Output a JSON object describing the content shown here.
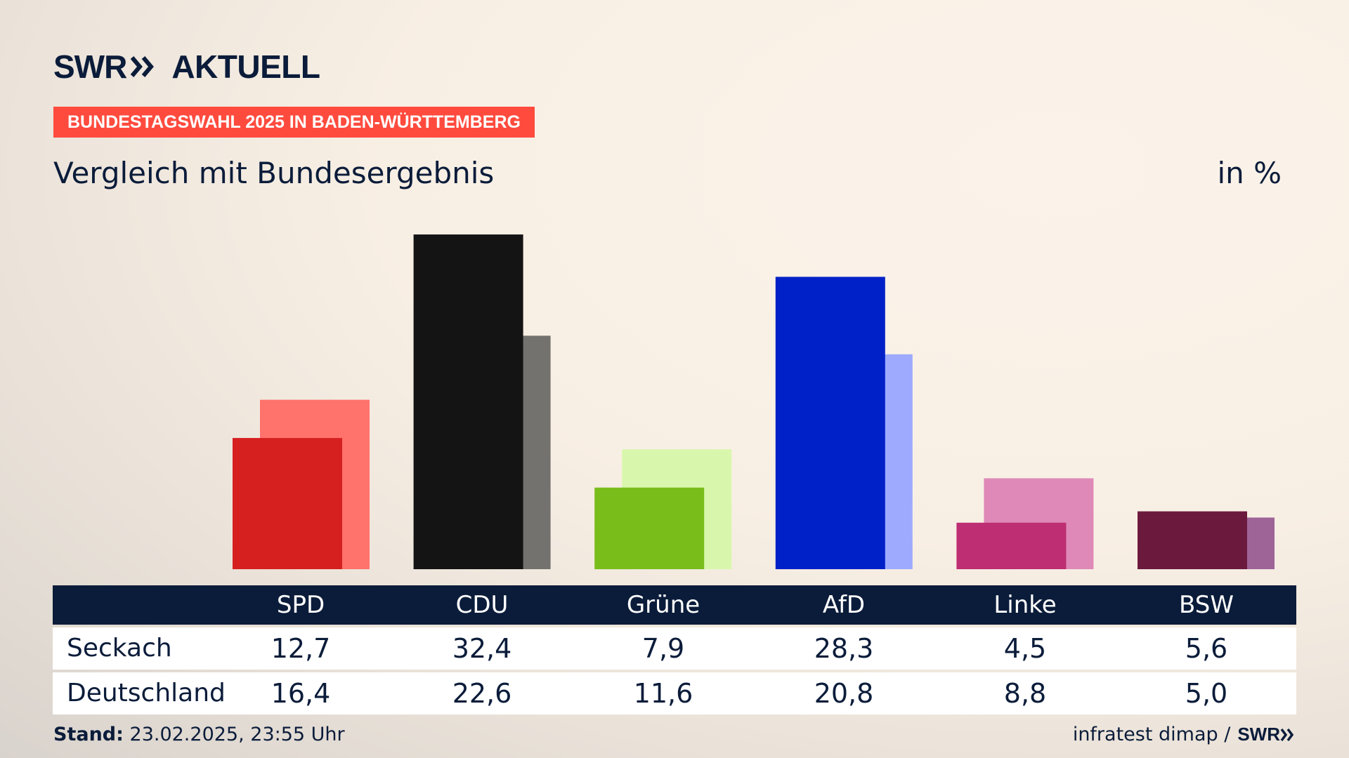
{
  "brand": {
    "swr": "SWR",
    "name": "AKTUELL"
  },
  "kicker": "BUNDESTAGSWAHL 2025 IN BADEN-WÜRTTEMBERG",
  "title": "Vergleich mit Bundesergebnis",
  "unit": "in %",
  "table": {
    "parties": [
      "SPD",
      "CDU",
      "Grüne",
      "AfD",
      "Linke",
      "BSW"
    ],
    "rows": [
      {
        "label": "Seckach",
        "values": [
          "12,7",
          "32,4",
          "7,9",
          "28,3",
          "4,5",
          "5,6"
        ]
      },
      {
        "label": "Deutschland",
        "values": [
          "16,4",
          "22,6",
          "11,6",
          "20,8",
          "8,8",
          "5,0"
        ]
      }
    ]
  },
  "footer": {
    "stand_label": "Stand:",
    "stand_value": "23.02.2025, 23:55 Uhr",
    "source": "infratest dimap /",
    "source_brand": "SWR"
  },
  "chart_data": {
    "type": "bar",
    "categories": [
      "SPD",
      "CDU",
      "Grüne",
      "AfD",
      "Linke",
      "BSW"
    ],
    "series": [
      {
        "name": "Seckach",
        "values": [
          12.7,
          32.4,
          7.9,
          28.3,
          4.5,
          5.6
        ],
        "colors": [
          "#d62020",
          "#141414",
          "#79bd1b",
          "#0021c8",
          "#bd2e72",
          "#6b1a3e"
        ]
      },
      {
        "name": "Deutschland",
        "values": [
          16.4,
          22.6,
          11.6,
          20.8,
          8.8,
          5.0
        ],
        "colors": [
          "#ff736c",
          "#73726f",
          "#d8f7ac",
          "#9eaafe",
          "#de89b7",
          "#9e6498"
        ]
      }
    ],
    "title": "Vergleich mit Bundesergebnis",
    "ylabel": "in %"
  }
}
